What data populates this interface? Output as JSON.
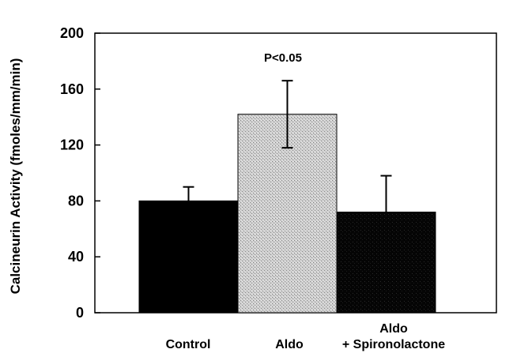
{
  "chart_data": {
    "type": "bar",
    "categories": [
      "Control",
      "Aldo",
      "Aldo\n+ Spironolactone"
    ],
    "values": [
      80,
      142,
      72
    ],
    "error_upper": [
      90,
      166,
      98
    ],
    "error_lower": [
      80,
      118,
      72
    ],
    "bar_fills": [
      "solid-black",
      "light-gray-stipple",
      "dark-stipple"
    ],
    "ylabel": "Calcineurin Activity (fmoles/mm/min)",
    "xlabel": "",
    "ylim": [
      0,
      200
    ],
    "yticks": [
      0,
      40,
      80,
      120,
      160,
      200
    ],
    "annotation": "P<0.05",
    "grid": false,
    "legend": "none"
  }
}
